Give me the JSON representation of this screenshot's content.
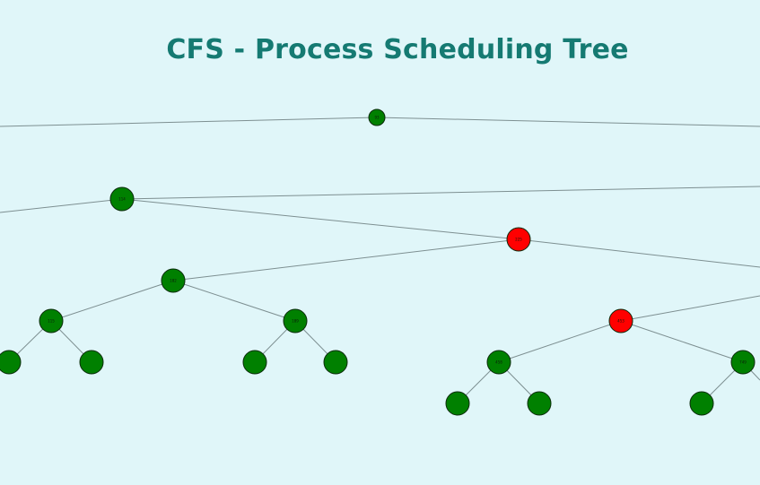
{
  "title": "CFS - Process Scheduling Tree",
  "colors": {
    "background": "#e0f6f9",
    "title": "#157a72",
    "edge": "#7d8f91",
    "node_black": "#008000",
    "node_red": "#ff0000",
    "node_stroke": "#0a2a0a"
  },
  "tree": {
    "nodes": [
      {
        "id": "n-root",
        "label": "93",
        "color": "black"
      },
      {
        "id": "n-l1a",
        "label": "114",
        "color": "black"
      },
      {
        "id": "n-l2a",
        "label": "225",
        "color": "red"
      },
      {
        "id": "n-l3a",
        "label": "182",
        "color": "black"
      },
      {
        "id": "n-l4a",
        "label": "115",
        "color": "black"
      },
      {
        "id": "n-l4b",
        "label": "189",
        "color": "black"
      },
      {
        "id": "n-l5a",
        "label": "",
        "color": "black"
      },
      {
        "id": "n-l5b",
        "label": "",
        "color": "black"
      },
      {
        "id": "n-l5c",
        "label": "",
        "color": "black"
      },
      {
        "id": "n-l5d",
        "label": "",
        "color": "black"
      },
      {
        "id": "n-l3b",
        "label": "453",
        "color": "red"
      },
      {
        "id": "n-l4c",
        "label": "458",
        "color": "black"
      },
      {
        "id": "n-l4d",
        "label": "749",
        "color": "black"
      },
      {
        "id": "n-l5e",
        "label": "",
        "color": "black"
      },
      {
        "id": "n-l5f",
        "label": "",
        "color": "black"
      },
      {
        "id": "n-l5g",
        "label": "",
        "color": "black"
      }
    ]
  }
}
